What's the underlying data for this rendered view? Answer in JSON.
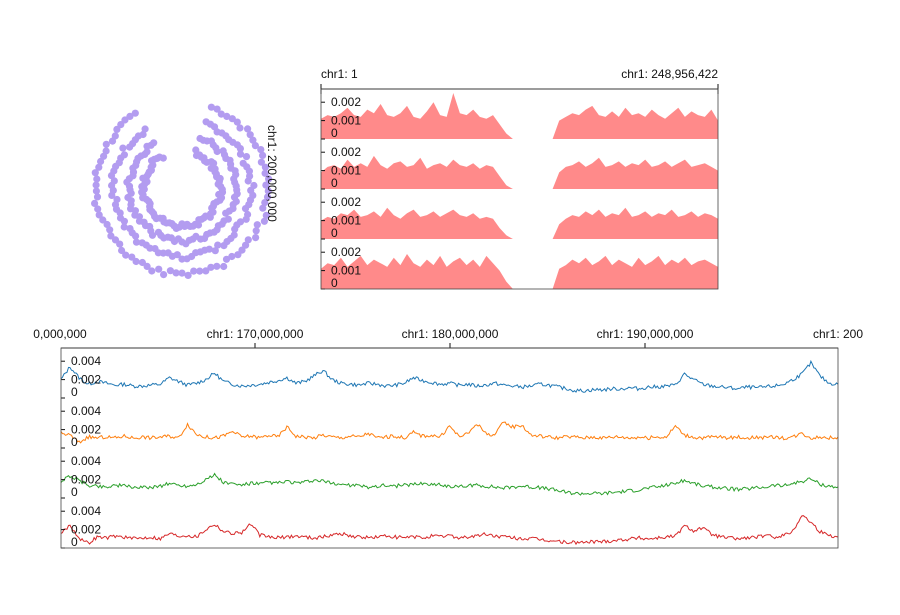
{
  "colors": {
    "ring": "#b39cf0",
    "area": "#ff8a8a",
    "series": [
      "#1f77b4",
      "#ff7f0e",
      "#2ca02c",
      "#d62728"
    ],
    "axis": "#111111"
  },
  "circular": {
    "label": "chr1: 200,000,000",
    "rings": 4,
    "gap_start_deg": 330,
    "gap_end_deg": 20
  },
  "overview": {
    "start_label": "chr1: 1",
    "end_label": "chr1: 248,956,422",
    "ticks": [
      "0.002",
      "0.001",
      "0"
    ],
    "ylim": [
      0,
      0.0025
    ],
    "gap_fraction": [
      0.485,
      0.58
    ],
    "tracks": 4
  },
  "detail": {
    "axis_labels": [
      "0,000,000",
      "chr1: 170,000,000",
      "chr1: 180,000,000",
      "chr1: 190,000,000",
      "chr1: 200"
    ],
    "ticks": [
      "0.004",
      "0.002",
      "0"
    ],
    "ylim": [
      0,
      0.005
    ],
    "tracks": 4
  },
  "chart_data": [
    {
      "type": "area",
      "region": "chr1",
      "x_range": [
        1,
        248956422
      ],
      "ylim": [
        0,
        0.0025
      ],
      "series": [
        {
          "values": [
            0.0011,
            0.0013,
            0.0012,
            0.0014,
            0.0017,
            0.0013,
            0.0012,
            0.0016,
            0.0014,
            0.0019,
            0.0013,
            0.0012,
            0.0014,
            0.0018,
            0.0012,
            0.0011,
            0.0015,
            0.002,
            0.0013,
            0.0012,
            0.0025,
            0.0014,
            0.0013,
            0.0016,
            0.0012,
            0.0011,
            0.0013,
            0.0008,
            0.0003,
            0,
            0,
            0,
            0,
            0,
            0,
            0,
            0.001,
            0.0012,
            0.0014,
            0.0013,
            0.0016,
            0.0018,
            0.0013,
            0.0012,
            0.0015,
            0.0012,
            0.0017,
            0.0013,
            0.0014,
            0.0012,
            0.0016,
            0.0013,
            0.0011,
            0.0014,
            0.0017,
            0.0012,
            0.0015,
            0.0013,
            0.0012,
            0.0016,
            0.001
          ]
        },
        {
          "values": [
            0.0009,
            0.0012,
            0.0013,
            0.0011,
            0.0016,
            0.0012,
            0.0014,
            0.0012,
            0.0018,
            0.0013,
            0.0011,
            0.0014,
            0.0015,
            0.0012,
            0.0013,
            0.0017,
            0.0011,
            0.0013,
            0.0014,
            0.0012,
            0.0016,
            0.0013,
            0.0012,
            0.0014,
            0.0011,
            0.0013,
            0.0012,
            0.0007,
            0.0002,
            0,
            0,
            0,
            0,
            0,
            0,
            0,
            0.0009,
            0.0012,
            0.0013,
            0.0015,
            0.0012,
            0.0014,
            0.0017,
            0.0012,
            0.0013,
            0.0015,
            0.0012,
            0.0014,
            0.0013,
            0.0016,
            0.0012,
            0.0013,
            0.0015,
            0.0012,
            0.0014,
            0.0016,
            0.0012,
            0.0013,
            0.0014,
            0.0012,
            0.001
          ]
        },
        {
          "values": [
            0.001,
            0.0012,
            0.0011,
            0.0014,
            0.0013,
            0.0016,
            0.0012,
            0.0013,
            0.0015,
            0.0012,
            0.0017,
            0.0013,
            0.0011,
            0.0014,
            0.0016,
            0.0012,
            0.0013,
            0.0015,
            0.0012,
            0.0014,
            0.0016,
            0.0013,
            0.0012,
            0.0014,
            0.0011,
            0.0012,
            0.0011,
            0.0006,
            0.0002,
            0,
            0,
            0,
            0,
            0,
            0,
            0,
            0.0008,
            0.0011,
            0.0013,
            0.0012,
            0.0015,
            0.0013,
            0.0016,
            0.0012,
            0.0014,
            0.0013,
            0.0017,
            0.0012,
            0.0013,
            0.0015,
            0.0012,
            0.0014,
            0.0013,
            0.0016,
            0.0012,
            0.0013,
            0.0015,
            0.0012,
            0.0014,
            0.0013,
            0.0011
          ]
        },
        {
          "values": [
            0.0011,
            0.0014,
            0.0013,
            0.0017,
            0.0012,
            0.0015,
            0.0018,
            0.0013,
            0.0016,
            0.0014,
            0.0012,
            0.0017,
            0.0013,
            0.0019,
            0.0014,
            0.0012,
            0.0016,
            0.0013,
            0.0018,
            0.0012,
            0.0015,
            0.0017,
            0.0013,
            0.0016,
            0.0012,
            0.0018,
            0.0014,
            0.001,
            0.0004,
            0,
            0,
            0,
            0,
            0,
            0,
            0,
            0.0011,
            0.0013,
            0.0016,
            0.0014,
            0.0017,
            0.0013,
            0.0015,
            0.0018,
            0.0013,
            0.0016,
            0.0014,
            0.0012,
            0.0017,
            0.0013,
            0.0015,
            0.0018,
            0.0013,
            0.0016,
            0.0014,
            0.0017,
            0.0013,
            0.0015,
            0.0016,
            0.0014,
            0.0012
          ]
        }
      ]
    },
    {
      "type": "line",
      "region": "chr1",
      "x_range": [
        160000000,
        200000000
      ],
      "x_ticks": [
        160000000,
        170000000,
        180000000,
        190000000,
        200000000
      ],
      "ylim": [
        0,
        0.005
      ],
      "series": [
        {
          "values": [
            0.002,
            0.0034,
            0.0022,
            0.0015,
            0.0018,
            0.0016,
            0.0014,
            0.0015,
            0.0013,
            0.0013,
            0.0014,
            0.0015,
            0.0022,
            0.0018,
            0.0014,
            0.0016,
            0.002,
            0.0027,
            0.0018,
            0.0015,
            0.0013,
            0.0014,
            0.0015,
            0.0017,
            0.0019,
            0.0022,
            0.0016,
            0.0018,
            0.0024,
            0.003,
            0.002,
            0.0016,
            0.0015,
            0.0014,
            0.0016,
            0.0015,
            0.0013,
            0.0014,
            0.0016,
            0.0022,
            0.0019,
            0.0017,
            0.0015,
            0.0016,
            0.0014,
            0.0015,
            0.0013,
            0.0014,
            0.0016,
            0.0014,
            0.0013,
            0.0012,
            0.0013,
            0.0015,
            0.0014,
            0.0012,
            0.001,
            0.0008,
            0.0008,
            0.0009,
            0.0009,
            0.001,
            0.001,
            0.0011,
            0.001,
            0.0012,
            0.0012,
            0.0013,
            0.0014,
            0.0026,
            0.002,
            0.0015,
            0.0013,
            0.0012,
            0.0011,
            0.001,
            0.0012,
            0.0011,
            0.0012,
            0.0013,
            0.0015,
            0.002,
            0.0026,
            0.0038,
            0.0024,
            0.0016,
            0.0015
          ]
        },
        {
          "values": [
            0.0016,
            0.0014,
            0.0006,
            0.0012,
            0.0011,
            0.0012,
            0.0011,
            0.0013,
            0.0011,
            0.0012,
            0.0011,
            0.0012,
            0.0013,
            0.0011,
            0.0026,
            0.0015,
            0.0012,
            0.0011,
            0.0013,
            0.0018,
            0.0012,
            0.0013,
            0.0011,
            0.0014,
            0.0012,
            0.0023,
            0.0013,
            0.0012,
            0.0011,
            0.0014,
            0.0012,
            0.0011,
            0.0013,
            0.0012,
            0.0016,
            0.0011,
            0.0012,
            0.0013,
            0.0011,
            0.0017,
            0.0013,
            0.0014,
            0.0012,
            0.0024,
            0.0013,
            0.0015,
            0.0027,
            0.0016,
            0.0014,
            0.0028,
            0.0023,
            0.0025,
            0.0014,
            0.0013,
            0.0012,
            0.0011,
            0.0012,
            0.0012,
            0.0011,
            0.0012,
            0.0011,
            0.0012,
            0.0012,
            0.0011,
            0.0012,
            0.0011,
            0.0012,
            0.0012,
            0.0024,
            0.0014,
            0.0012,
            0.0011,
            0.0012,
            0.0012,
            0.0011,
            0.0012,
            0.0011,
            0.0012,
            0.0011,
            0.0012,
            0.0011,
            0.0012,
            0.0016,
            0.0011,
            0.0012,
            0.0011,
            0.0012
          ]
        },
        {
          "values": [
            0.0018,
            0.0024,
            0.0019,
            0.0014,
            0.0013,
            0.0012,
            0.0014,
            0.0013,
            0.0012,
            0.0011,
            0.0012,
            0.0013,
            0.0016,
            0.0014,
            0.0013,
            0.0015,
            0.002,
            0.0025,
            0.0017,
            0.0015,
            0.0014,
            0.0016,
            0.0015,
            0.0017,
            0.0016,
            0.0018,
            0.0016,
            0.0017,
            0.0019,
            0.0018,
            0.0016,
            0.0015,
            0.0014,
            0.0013,
            0.0012,
            0.0013,
            0.0014,
            0.0013,
            0.0014,
            0.0015,
            0.0016,
            0.0015,
            0.0014,
            0.0013,
            0.0012,
            0.0013,
            0.0014,
            0.0013,
            0.0012,
            0.0011,
            0.0012,
            0.0013,
            0.0012,
            0.0011,
            0.001,
            0.0008,
            0.0006,
            0.0005,
            0.0005,
            0.0005,
            0.0005,
            0.0006,
            0.0007,
            0.0008,
            0.0009,
            0.0011,
            0.0012,
            0.0014,
            0.0016,
            0.0019,
            0.0016,
            0.0013,
            0.0012,
            0.0011,
            0.001,
            0.0009,
            0.001,
            0.0011,
            0.0012,
            0.0014,
            0.0013,
            0.0016,
            0.0018,
            0.0021,
            0.0015,
            0.0013,
            0.0012
          ]
        },
        {
          "values": [
            0.0016,
            0.0025,
            0.0011,
            0.0005,
            0.0012,
            0.0011,
            0.0013,
            0.0012,
            0.001,
            0.0011,
            0.0012,
            0.001,
            0.0016,
            0.0013,
            0.0014,
            0.0012,
            0.002,
            0.0026,
            0.0018,
            0.0016,
            0.0017,
            0.0026,
            0.0014,
            0.0012,
            0.0011,
            0.0012,
            0.0013,
            0.0012,
            0.0011,
            0.0012,
            0.0014,
            0.0016,
            0.0013,
            0.0012,
            0.0011,
            0.0012,
            0.0013,
            0.0012,
            0.0011,
            0.0012,
            0.0011,
            0.0013,
            0.0012,
            0.0014,
            0.0011,
            0.0012,
            0.0013,
            0.0015,
            0.0013,
            0.0012,
            0.0011,
            0.001,
            0.001,
            0.0009,
            0.0008,
            0.0007,
            0.0006,
            0.0006,
            0.0006,
            0.0007,
            0.0007,
            0.0008,
            0.0009,
            0.001,
            0.0011,
            0.001,
            0.0011,
            0.0012,
            0.0013,
            0.0024,
            0.0019,
            0.0022,
            0.0015,
            0.0012,
            0.0011,
            0.001,
            0.0011,
            0.0012,
            0.0013,
            0.0012,
            0.0014,
            0.0018,
            0.0036,
            0.0028,
            0.0018,
            0.0014,
            0.0012
          ]
        }
      ]
    }
  ]
}
